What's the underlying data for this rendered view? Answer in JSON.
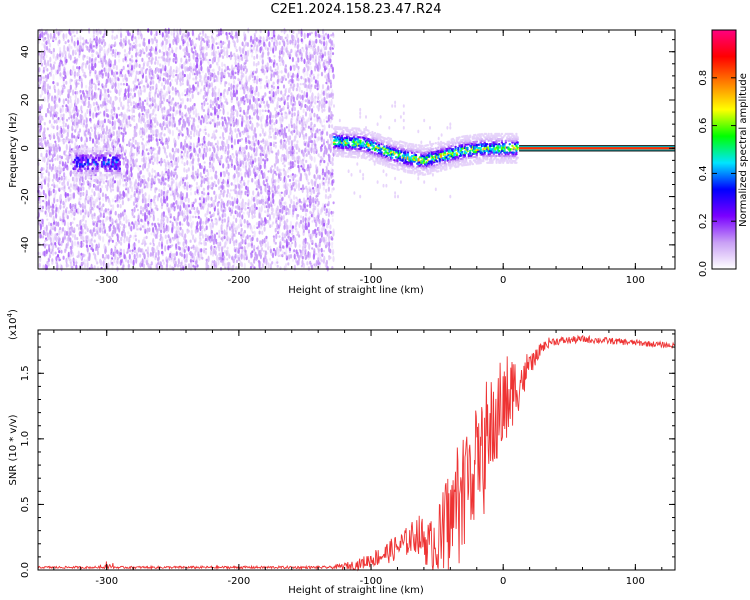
{
  "title": "C2E1.2024.158.23.47.R24",
  "colors": {
    "snr_line": "#ee3333",
    "axes": "#000000",
    "background": "#ffffff"
  },
  "chart_data": [
    {
      "type": "heatmap",
      "xlabel": "Height of straight line (km)",
      "ylabel": "Frequency (Hz)",
      "xlim": [
        -352,
        130
      ],
      "ylim": [
        -50,
        49
      ],
      "x_ticks": [
        "-300",
        "-200",
        "-100",
        "0",
        "100"
      ],
      "y_ticks": [
        "-40",
        "-20",
        "0",
        "20",
        "40"
      ],
      "colorbar": {
        "label": "Normalized spectral amplitude",
        "range": [
          0,
          1
        ],
        "ticks": [
          "0.0",
          "0.2",
          "0.4",
          "0.6",
          "0.8"
        ],
        "colors": [
          "#ffffff",
          "#c9a0f5",
          "#7a00ff",
          "#0000ff",
          "#00e5ff",
          "#00ff00",
          "#ffff00",
          "#ff8000",
          "#ff0000",
          "#ff0080"
        ]
      },
      "features": {
        "noise_region_x": [
          -352,
          -128
        ],
        "noise_amplitude": 0.15,
        "cluster_x": [
          -325,
          -290
        ],
        "cluster_freq": -6,
        "cluster_amplitude": 0.35,
        "ridge_x": [
          -128,
          12
        ],
        "ridge_freq_knots": [
          [
            -130,
            3
          ],
          [
            -105,
            2
          ],
          [
            -85,
            -2
          ],
          [
            -72,
            -4
          ],
          [
            -60,
            -5
          ],
          [
            -45,
            -3
          ],
          [
            -30,
            -1
          ],
          [
            -15,
            0
          ],
          [
            0,
            0
          ],
          [
            12,
            0
          ]
        ],
        "ridge_amplitude": 0.55,
        "steady_x": [
          12,
          130
        ],
        "steady_freq": 0,
        "steady_amplitude": 0.85
      }
    },
    {
      "type": "line",
      "xlabel": "Height of straight line (km)",
      "ylabel": "SNR (10 * v/v)",
      "scale_label": "(x10",
      "scale_exp": "4",
      "scale_close": ")",
      "xlim": [
        -352,
        130
      ],
      "ylim": [
        0,
        1.83
      ],
      "x_ticks": [
        "-300",
        "-200",
        "-100",
        "0",
        "100"
      ],
      "y_ticks": [
        "0.0",
        "0.5",
        "1.0",
        "1.5"
      ],
      "envelope_knots": [
        [
          -352,
          0.02
        ],
        [
          -300,
          0.02
        ],
        [
          -200,
          0.02
        ],
        [
          -130,
          0.02
        ],
        [
          -110,
          0.04
        ],
        [
          -90,
          0.12
        ],
        [
          -75,
          0.2
        ],
        [
          -65,
          0.28
        ],
        [
          -55,
          0.18
        ],
        [
          -45,
          0.35
        ],
        [
          -35,
          0.6
        ],
        [
          -25,
          0.85
        ],
        [
          -15,
          1.05
        ],
        [
          -5,
          1.25
        ],
        [
          5,
          1.4
        ],
        [
          15,
          1.5
        ],
        [
          25,
          1.65
        ],
        [
          35,
          1.74
        ],
        [
          60,
          1.76
        ],
        [
          90,
          1.74
        ],
        [
          130,
          1.71
        ]
      ],
      "noise_knots": [
        [
          -352,
          0.008
        ],
        [
          -130,
          0.01
        ],
        [
          -110,
          0.04
        ],
        [
          -90,
          0.08
        ],
        [
          -70,
          0.12
        ],
        [
          -55,
          0.2
        ],
        [
          -45,
          0.35
        ],
        [
          -30,
          0.45
        ],
        [
          -15,
          0.45
        ],
        [
          0,
          0.35
        ],
        [
          15,
          0.15
        ],
        [
          25,
          0.05
        ],
        [
          40,
          0.03
        ],
        [
          130,
          0.02
        ]
      ]
    }
  ]
}
